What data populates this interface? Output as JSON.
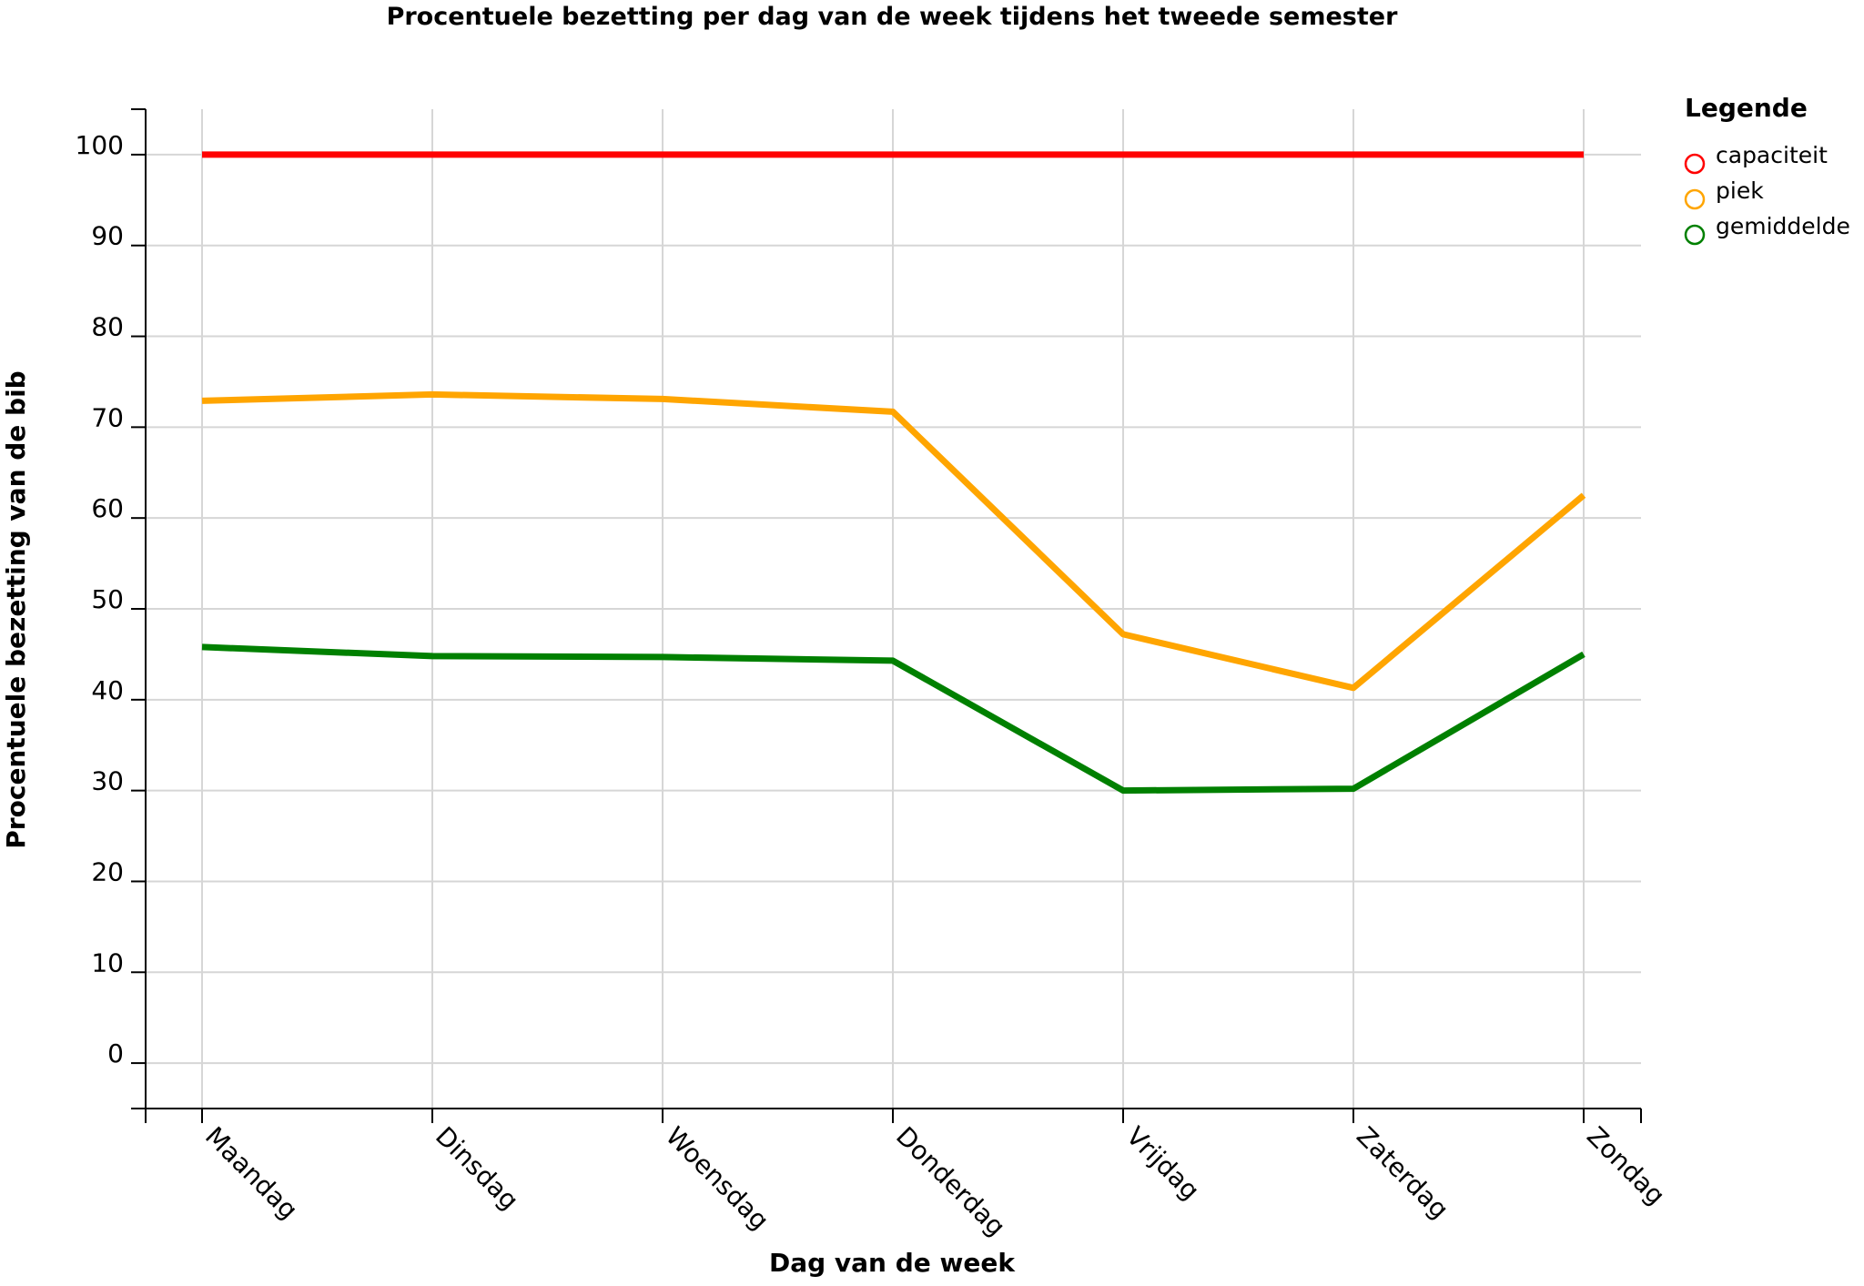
{
  "chart_data": {
    "type": "line",
    "title": "Procentuele bezetting per dag van de week tijdens het tweede semester",
    "xlabel": "Dag van de week",
    "ylabel": "Procentuele bezetting van de bib",
    "categories": [
      "Maandag",
      "Dinsdag",
      "Woensdag",
      "Donderdag",
      "Vrijdag",
      "Zaterdag",
      "Zondag"
    ],
    "ylim": [
      -5,
      105
    ],
    "yticks": [
      0,
      10,
      20,
      30,
      40,
      50,
      60,
      70,
      80,
      90,
      100
    ],
    "grid": true,
    "legend": {
      "title": "Legende",
      "placement": "right"
    },
    "series": [
      {
        "name": "capaciteit",
        "color": "#ff0000",
        "values": [
          100,
          100,
          100,
          100,
          100,
          100,
          100
        ]
      },
      {
        "name": "piek",
        "color": "#ffa500",
        "values": [
          72.9,
          73.6,
          73.1,
          71.7,
          47.2,
          41.3,
          62.5
        ]
      },
      {
        "name": "gemiddelde",
        "color": "#008000",
        "values": [
          45.8,
          44.8,
          44.7,
          44.3,
          30.0,
          30.2,
          45.0
        ]
      }
    ]
  }
}
